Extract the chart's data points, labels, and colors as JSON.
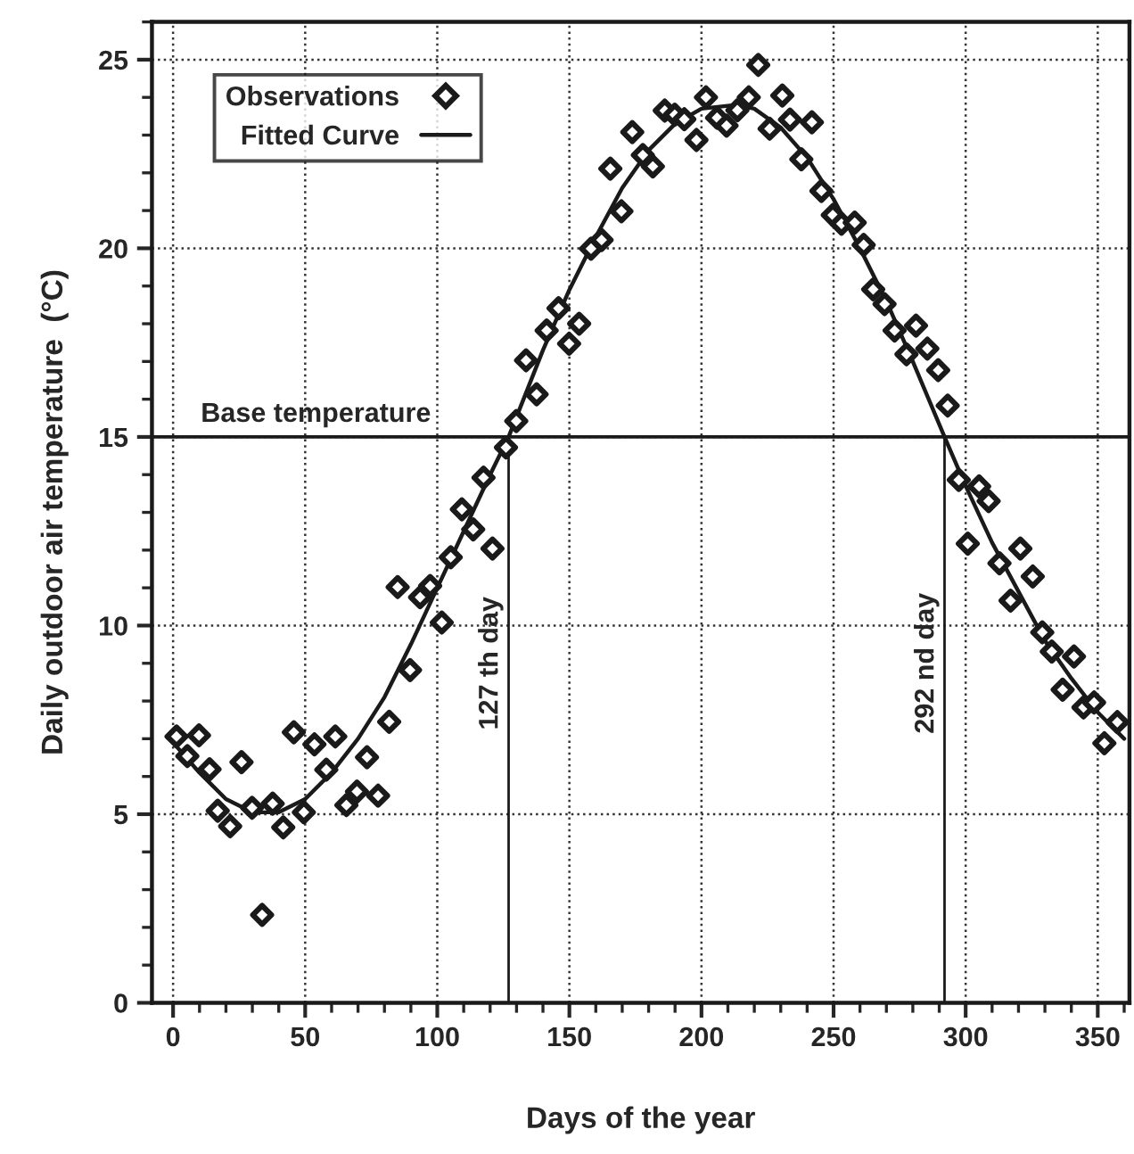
{
  "chart_data": {
    "type": "scatter",
    "xlabel": "Days of the year",
    "ylabel": "Daily outdoor air temperature  (°C)",
    "xlim": [
      -8,
      362
    ],
    "ylim": [
      0,
      26
    ],
    "xticks": [
      0,
      50,
      100,
      150,
      200,
      250,
      300,
      350
    ],
    "yticks": [
      0,
      5,
      10,
      15,
      20,
      25
    ],
    "grid": true,
    "legend": "top left",
    "series": [
      {
        "name": "Observations",
        "marker": "diamond",
        "color": "#1a1a1a",
        "x": [
          1.3,
          5.4,
          9.8,
          13.8,
          16.9,
          21.6,
          25.9,
          29.9,
          33.7,
          37.7,
          41.7,
          45.7,
          49.5,
          53.5,
          58.0,
          61.4,
          65.6,
          69.6,
          73.4,
          77.6,
          81.8,
          85.0,
          89.7,
          93.5,
          97.3,
          101.7,
          105.1,
          109.3,
          113.6,
          117.5,
          120.9,
          126.0,
          129.9,
          133.6,
          137.6,
          141.4,
          145.9,
          149.9,
          153.7,
          158.2,
          162.2,
          165.5,
          169.7,
          173.8,
          177.8,
          181.6,
          186.1,
          189.9,
          193.5,
          198.1,
          201.7,
          205.9,
          209.5,
          213.6,
          217.9,
          221.5,
          225.8,
          230.6,
          233.5,
          237.8,
          241.8,
          245.4,
          249.7,
          253.0,
          258.0,
          261.4,
          265.0,
          269.3,
          273.1,
          277.6,
          281.2,
          285.5,
          289.6,
          293.2,
          297.4,
          300.8,
          305.1,
          308.7,
          312.8,
          317.0,
          320.7,
          325.4,
          329.0,
          332.6,
          336.7,
          341.0,
          344.6,
          348.6,
          352.5,
          357.4
        ],
        "values": [
          7.06,
          6.54,
          7.09,
          6.19,
          5.09,
          4.68,
          6.38,
          5.17,
          2.33,
          5.28,
          4.65,
          7.17,
          5.05,
          6.85,
          6.18,
          7.06,
          5.24,
          5.6,
          6.51,
          5.49,
          7.45,
          11.02,
          8.82,
          10.75,
          11.05,
          10.08,
          11.81,
          13.08,
          12.55,
          13.92,
          12.04,
          14.72,
          15.42,
          17.03,
          16.13,
          17.82,
          18.41,
          17.47,
          18.0,
          19.99,
          20.22,
          22.11,
          20.98,
          23.08,
          22.47,
          22.17,
          23.65,
          23.54,
          23.42,
          22.87,
          24.0,
          23.46,
          23.25,
          23.66,
          24.0,
          24.86,
          23.17,
          24.05,
          23.41,
          22.36,
          23.34,
          21.52,
          20.88,
          20.65,
          20.68,
          20.09,
          18.91,
          18.52,
          17.82,
          17.19,
          17.95,
          17.34,
          16.77,
          15.83,
          13.86,
          12.17,
          13.69,
          13.3,
          11.65,
          10.66,
          12.04,
          11.3,
          9.82,
          9.31,
          8.3,
          9.18,
          7.83,
          7.96,
          6.88,
          7.44
        ]
      },
      {
        "name": "Fitted Curve",
        "type": "line",
        "line_style": "solid",
        "color": "#1a1a1a",
        "x": [
          0,
          10,
          20,
          30,
          40,
          50,
          60,
          70,
          80,
          90,
          100,
          110,
          120,
          127,
          140,
          150,
          160,
          170,
          180,
          190,
          200,
          213,
          220,
          230,
          240,
          250,
          260,
          270,
          280,
          292,
          300,
          310,
          320,
          330,
          340,
          350,
          360
        ],
        "values": [
          6.9,
          6.1,
          5.4,
          5.05,
          5.05,
          5.4,
          6.1,
          7.0,
          8.1,
          9.5,
          11.0,
          12.5,
          14.0,
          15.0,
          17.3,
          18.9,
          20.3,
          21.6,
          22.6,
          23.3,
          23.7,
          23.8,
          23.7,
          23.2,
          22.4,
          21.3,
          20.0,
          18.6,
          17.0,
          15.0,
          13.7,
          12.2,
          10.9,
          9.6,
          8.6,
          7.7,
          7.0
        ]
      }
    ],
    "ref_lines": [
      {
        "axis": "y",
        "value": 15,
        "label": "Base temperature",
        "color": "#1a1a1a",
        "line_style": "solid"
      },
      {
        "axis": "x",
        "value": 127,
        "label": "127 th day",
        "color": "#1a1a1a",
        "line_style": "solid"
      },
      {
        "axis": "x",
        "value": 292,
        "label": "292 nd day",
        "color": "#1a1a1a",
        "line_style": "solid"
      }
    ]
  }
}
